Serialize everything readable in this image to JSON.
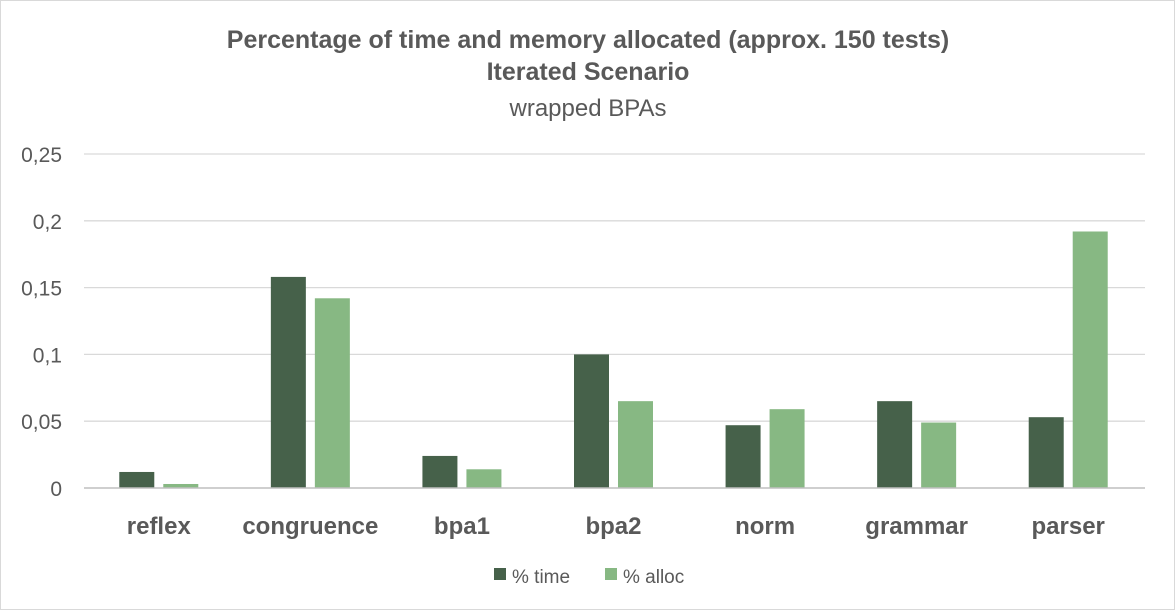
{
  "chart_data": {
    "type": "bar",
    "title": "Percentage of time and memory allocated (approx. 150 tests)",
    "title_line2": "Iterated Scenario",
    "subtitle": "wrapped BPAs",
    "categories": [
      "reflex",
      "congruence",
      "bpa1",
      "bpa2",
      "norm",
      "grammar",
      "parser"
    ],
    "series": [
      {
        "name": "% time",
        "color": "#46614a",
        "values": [
          0.012,
          0.158,
          0.024,
          0.1,
          0.047,
          0.065,
          0.053
        ]
      },
      {
        "name": "% alloc",
        "color": "#87b883",
        "values": [
          0.003,
          0.142,
          0.014,
          0.065,
          0.059,
          0.049,
          0.192
        ]
      }
    ],
    "ylim": [
      0,
      0.25
    ],
    "yticks": [
      0,
      0.05,
      0.1,
      0.15,
      0.2,
      0.25
    ],
    "ytick_labels": [
      "0",
      "0,05",
      "0,1",
      "0,15",
      "0,2",
      "0,25"
    ],
    "grid": true,
    "legend_position": "bottom",
    "gridline_color": "#d9d9d9",
    "axis_color": "#bfbfbf"
  }
}
